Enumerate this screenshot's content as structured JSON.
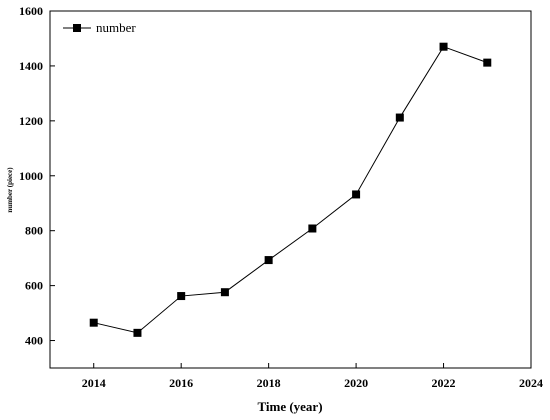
{
  "chart_data": {
    "type": "line",
    "title": "",
    "xlabel": "Time (year)",
    "ylabel": "number (piece)",
    "xlim": [
      2013,
      2024
    ],
    "ylim": [
      300,
      1600
    ],
    "x_ticks": [
      2014,
      2016,
      2018,
      2020,
      2022,
      2024
    ],
    "y_ticks": [
      400,
      600,
      800,
      1000,
      1200,
      1400,
      1600
    ],
    "grid": false,
    "legend_position": "top-left",
    "series": [
      {
        "name": "number",
        "color": "#000000",
        "marker": "square",
        "x": [
          2014,
          2015,
          2016,
          2017,
          2018,
          2019,
          2020,
          2021,
          2022,
          2023
        ],
        "y": [
          465,
          428,
          562,
          576,
          693,
          808,
          932,
          1212,
          1470,
          1412
        ]
      }
    ]
  }
}
